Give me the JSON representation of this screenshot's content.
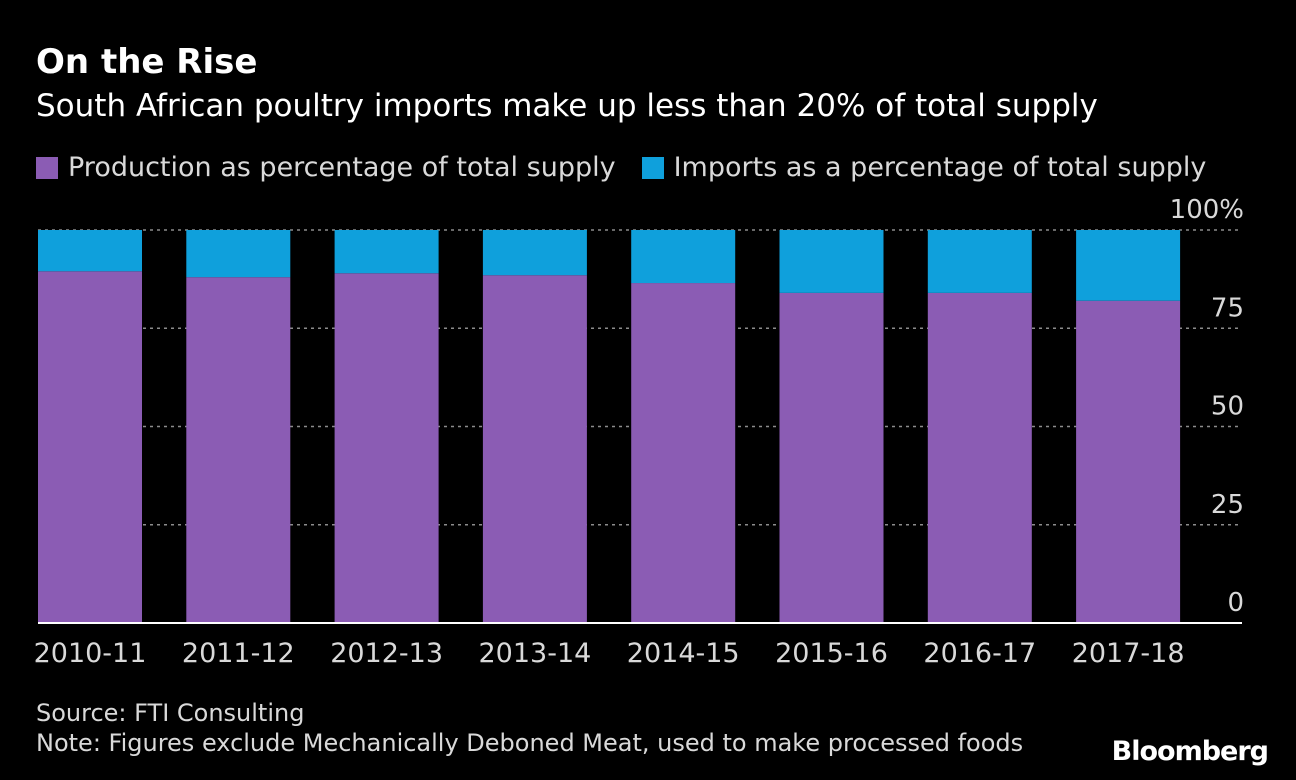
{
  "title": "On the Rise",
  "subtitle": "South African poultry imports make up less than 20% of total supply",
  "legend": [
    {
      "label": "Production as percentage of total supply",
      "color": "#8b5cb4"
    },
    {
      "label": "Imports as a percentage of total supply",
      "color": "#0fa0dc"
    }
  ],
  "source": "Source: FTI Consulting",
  "note": "Note: Figures exclude Mechanically Deboned Meat, used to make processed foods",
  "brand": "Bloomberg",
  "chart_data": {
    "type": "bar",
    "stacked": true,
    "categories": [
      "2010-11",
      "2011-12",
      "2012-13",
      "2013-14",
      "2014-15",
      "2015-16",
      "2016-17",
      "2017-18"
    ],
    "series": [
      {
        "name": "Production as percentage of total supply",
        "color": "#8b5cb4",
        "values": [
          89.5,
          88,
          89,
          88.5,
          86.5,
          84,
          84,
          82
        ]
      },
      {
        "name": "Imports as a percentage of total supply",
        "color": "#0fa0dc",
        "values": [
          10.5,
          12,
          11,
          11.5,
          13.5,
          16,
          16,
          18
        ]
      }
    ],
    "ylim": [
      0,
      100
    ],
    "yticks": [
      0,
      25,
      50,
      75,
      100
    ],
    "ytick_labels": [
      "0",
      "25",
      "50",
      "75",
      "100%"
    ],
    "y_axis_position": "right",
    "grid": true,
    "legend_position": "top-left"
  }
}
